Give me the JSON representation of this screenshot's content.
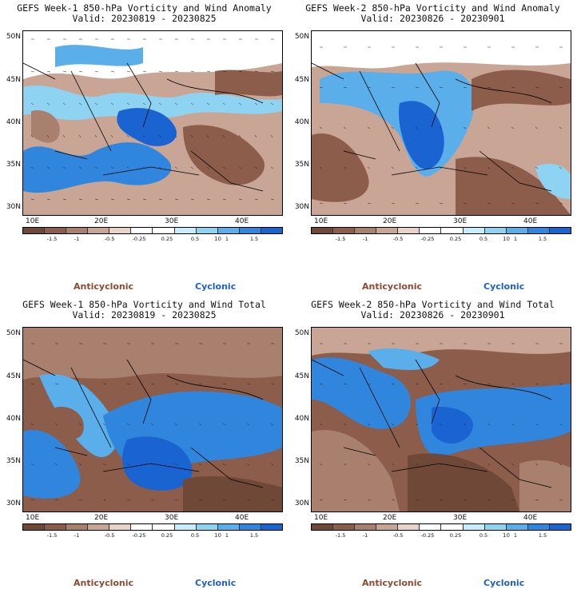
{
  "colors": {
    "anticyclonic_text": "#8a4a33",
    "cyclonic_text": "#1e5fcc",
    "scale": [
      "#6f4838",
      "#8b5d4a",
      "#a8806d",
      "#c9a595",
      "#e8d3c8",
      "#ffffff",
      "#ffffff",
      "#c6eefa",
      "#8fd3f2",
      "#5aaeea",
      "#2f86dc",
      "#1a64d2"
    ]
  },
  "common": {
    "lat_labels": [
      "50N",
      "45N",
      "40N",
      "35N",
      "30N"
    ],
    "lon_labels": [
      "10E",
      "20E",
      "30E",
      "40E"
    ],
    "colorbar_ticks": [
      "-1.5",
      "-1",
      "-0.5",
      "-0.25",
      "0.25",
      "0.5",
      "1",
      "1.5"
    ],
    "colorbar_unit": "10",
    "legend_anticyclonic": "Anticyclonic",
    "legend_cyclonic": "Cyclonic"
  },
  "panels": [
    {
      "title": "GEFS Week-1 850-hPa Vorticity and Wind Anomaly",
      "valid": "Valid: 20230819 - 20230825",
      "field": "anomaly",
      "blue_fraction": 0.45
    },
    {
      "title": "GEFS Week-2 850-hPa Vorticity and Wind Anomaly",
      "valid": "Valid: 20230826 - 20230901",
      "field": "anomaly",
      "blue_fraction": 0.38
    },
    {
      "title": "GEFS Week-1 850-hPa Vorticity and Wind Total",
      "valid": "Valid: 20230819 - 20230825",
      "field": "total",
      "blue_fraction": 0.4
    },
    {
      "title": "GEFS Week-2 850-hPa Vorticity and Wind Total",
      "valid": "Valid: 20230826 - 20230901",
      "field": "total",
      "blue_fraction": 0.35
    }
  ]
}
